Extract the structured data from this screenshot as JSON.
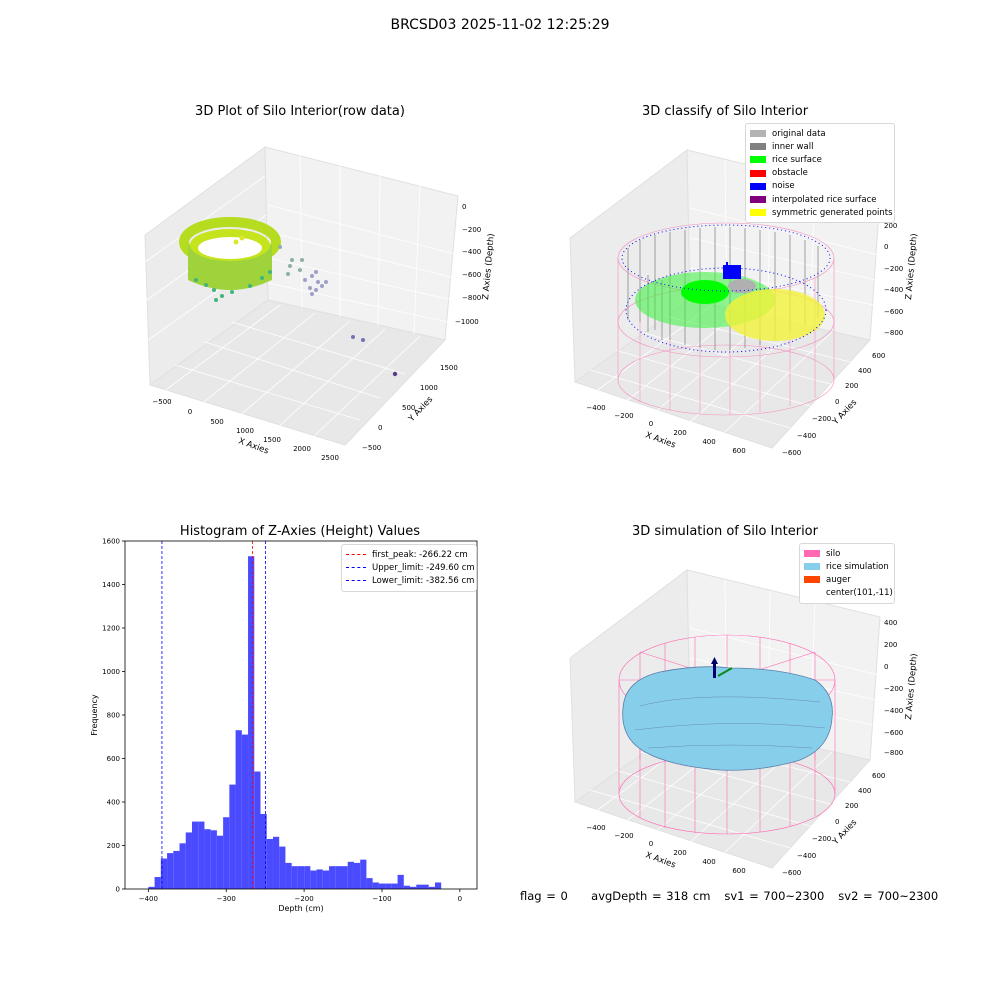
{
  "figure": {
    "suptitle": "BRCSD03 2025-11-02 12:25:29",
    "footer": {
      "flag": "flag = 0",
      "avg_depth": "avgDepth = 318 cm",
      "sv1": "sv1 = 700~2300",
      "sv2": "sv2 = 700~2300"
    }
  },
  "panels": {
    "raw": {
      "title": "3D Plot of Silo Interior(row data)",
      "xlabel": "X Axies",
      "ylabel": "Y Axies",
      "zlabel": "Z Axies (Depth)",
      "xticks": [
        "−500",
        "0",
        "500",
        "1000",
        "1500",
        "2000",
        "2500"
      ],
      "yticks": [
        "−500",
        "0",
        "500",
        "1000",
        "1500"
      ],
      "zticks": [
        "0",
        "−200",
        "−400",
        "−600",
        "−800",
        "−1000"
      ]
    },
    "classify": {
      "title": "3D classify of Silo Interior",
      "xlabel": "X Axies",
      "ylabel": "Y Axies",
      "zlabel": "Z Axies (Depth)",
      "xticks": [
        "−400",
        "−200",
        "0",
        "200",
        "400",
        "600"
      ],
      "yticks": [
        "−600",
        "−400",
        "−200",
        "0",
        "200",
        "400",
        "600"
      ],
      "zticks": [
        "200",
        "0",
        "−200",
        "−400",
        "−600",
        "−800"
      ],
      "legend": [
        {
          "label": "original data",
          "color": "#b3b3b3"
        },
        {
          "label": "inner wall",
          "color": "#808080"
        },
        {
          "label": "rice surface",
          "color": "#00ff00"
        },
        {
          "label": "obstacle",
          "color": "#ff0000"
        },
        {
          "label": "noise",
          "color": "#0000ff"
        },
        {
          "label": "interpolated rice surface",
          "color": "#800080"
        },
        {
          "label": "symmetric generated points",
          "color": "#ffff00"
        }
      ]
    },
    "simulation": {
      "title": "3D simulation of Silo Interior",
      "xlabel": "X Axies",
      "ylabel": "Y Axies",
      "zlabel": "Z Axies (Depth)",
      "xticks": [
        "−400",
        "−200",
        "0",
        "200",
        "400",
        "600"
      ],
      "yticks": [
        "−600",
        "−400",
        "−200",
        "0",
        "200",
        "400",
        "600"
      ],
      "zticks": [
        "400",
        "200",
        "0",
        "−200",
        "−400",
        "−600",
        "−800"
      ],
      "legend": [
        {
          "label": "silo",
          "color": "#ff69b4"
        },
        {
          "label": "rice simulation",
          "color": "#87ceeb"
        },
        {
          "label": "auger",
          "color": "#ff4500"
        },
        {
          "label": "center(101,-11)",
          "color": "#ffffff"
        }
      ]
    }
  },
  "chart_data": {
    "type": "bar",
    "title": "Histogram of Z-Axies (Height) Values",
    "xlabel": "Depth (cm)",
    "ylabel": "Frequency",
    "xlim": [
      -430,
      22
    ],
    "ylim": [
      0,
      1600
    ],
    "xticks": [
      -400,
      -300,
      -200,
      -100,
      0
    ],
    "yticks": [
      0,
      200,
      400,
      600,
      800,
      1000,
      1200,
      1400,
      1600
    ],
    "bin_start": -400,
    "bin_width": 8,
    "bin_counts": [
      10,
      55,
      140,
      165,
      175,
      210,
      260,
      310,
      310,
      275,
      270,
      245,
      330,
      480,
      730,
      710,
      1530,
      540,
      345,
      230,
      240,
      195,
      120,
      105,
      105,
      105,
      85,
      90,
      85,
      105,
      105,
      105,
      125,
      120,
      135,
      50,
      30,
      25,
      25,
      25,
      65,
      15,
      10,
      20,
      20,
      10,
      30
    ],
    "color": "#4a4aff",
    "vlines": [
      {
        "label": "first_peak: -266.22 cm",
        "x": -266.22,
        "color": "#ff0000"
      },
      {
        "label": "Upper_limit: -249.60 cm",
        "x": -249.6,
        "color": "#0000ff"
      },
      {
        "label": "Lower_limit: -382.56 cm",
        "x": -382.56,
        "color": "#0000ff"
      }
    ],
    "legend_position": "top-right",
    "grid": false
  }
}
